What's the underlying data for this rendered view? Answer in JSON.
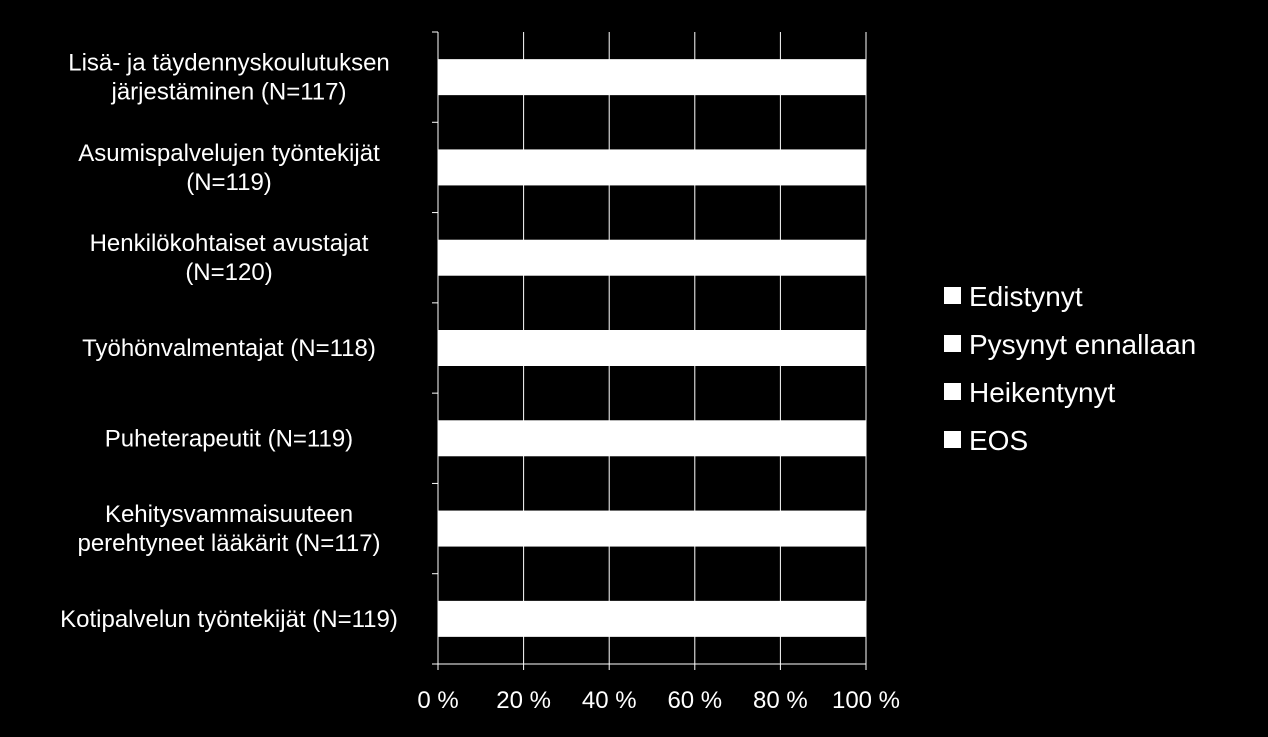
{
  "chart_data": {
    "type": "bar",
    "orientation": "horizontal",
    "stacked": true,
    "categories": [
      [
        "Lisä- ja täydennyskoulutuksen",
        "järjestäminen (N=117)"
      ],
      [
        "Asumispalvelujen työntekijät",
        "(N=119)"
      ],
      [
        "Henkilökohtaiset avustajat",
        "(N=120)"
      ],
      [
        "Työhönvalmentajat (N=118)"
      ],
      [
        "Puheterapeutit (N=119)"
      ],
      [
        "Kehitysvammaisuuteen",
        "perehtyneet lääkärit (N=117)"
      ],
      [
        "Kotipalvelun työntekijät (N=119)"
      ]
    ],
    "series": [
      {
        "name": "Edistynyt",
        "color": "#ffffff",
        "values": [
          100,
          100,
          100,
          100,
          100,
          100,
          100
        ]
      },
      {
        "name": "Pysynyt ennallaan",
        "color": "#ffffff",
        "values": [
          0,
          0,
          0,
          0,
          0,
          0,
          0
        ]
      },
      {
        "name": "Heikentynyt",
        "color": "#ffffff",
        "values": [
          0,
          0,
          0,
          0,
          0,
          0,
          0
        ]
      },
      {
        "name": "EOS",
        "color": "#ffffff",
        "values": [
          0,
          0,
          0,
          0,
          0,
          0,
          0
        ]
      }
    ],
    "x_ticks": [
      "0 %",
      "20 %",
      "40 %",
      "60 %",
      "80 %",
      "100 %"
    ],
    "xlim": [
      0,
      100
    ],
    "grid": true,
    "legend_position": "right",
    "background": "#000000",
    "grid_color": "#ffffff"
  }
}
